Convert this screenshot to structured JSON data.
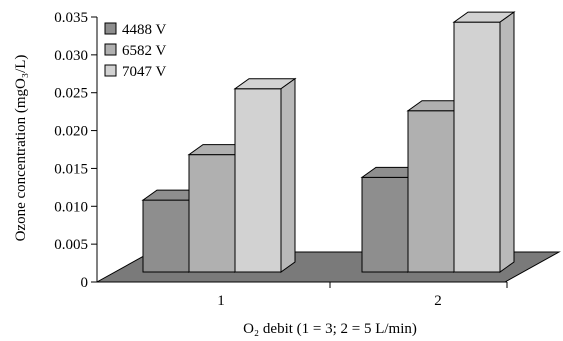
{
  "chart_data": {
    "type": "bar",
    "categories": [
      "1",
      "2"
    ],
    "series": [
      {
        "name": "4488 V",
        "values": [
          0.0095,
          0.0125
        ],
        "color": "#8e8e8e"
      },
      {
        "name": "6582 V",
        "values": [
          0.0155,
          0.0213
        ],
        "color": "#b0b0b0"
      },
      {
        "name": "7047 V",
        "values": [
          0.0242,
          0.033
        ],
        "color": "#d2d2d2"
      }
    ],
    "ylim": [
      0,
      0.035
    ],
    "yticks": [
      "0",
      "0.005",
      "0.010",
      "0.015",
      "0.020",
      "0.025",
      "0.030",
      "0.035"
    ],
    "ylabel": "Ozone concentration (mgO₃/L)",
    "xlabel": "O₂ debit (1 = 3; 2 = 5 L/min)",
    "legend_position": "top-left",
    "floor_color": "#7a7a7a",
    "style": "3d"
  }
}
